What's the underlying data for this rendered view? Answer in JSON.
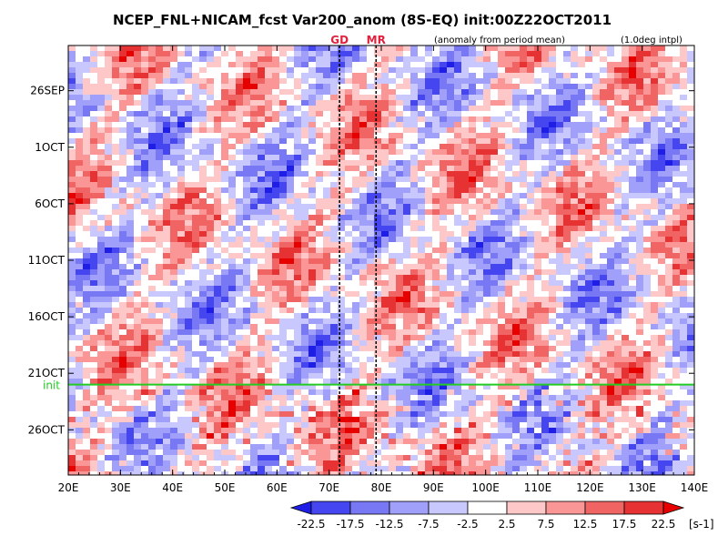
{
  "chart_data": {
    "type": "heatmap",
    "title": "NCEP_FNL+NICAM_fcst Var200_anom (8S-EQ) init:00Z22OCT2011",
    "subtitle_left": "(anomaly from period mean)",
    "subtitle_right": "(1.0deg intpl)",
    "x_axis": {
      "range": [
        20,
        140
      ],
      "ticks": [
        20,
        30,
        40,
        50,
        60,
        70,
        80,
        90,
        100,
        110,
        120,
        130,
        140
      ],
      "tick_labels": [
        "20E",
        "30E",
        "40E",
        "50E",
        "60E",
        "70E",
        "80E",
        "90E",
        "100E",
        "110E",
        "120E",
        "130E",
        "140E"
      ]
    },
    "y_axis": {
      "range": [
        "2011-09-22",
        "2011-10-30"
      ],
      "ticks": [
        "2011-09-26",
        "2011-10-01",
        "2011-10-06",
        "2011-10-11",
        "2011-10-16",
        "2011-10-21",
        "2011-10-26"
      ],
      "tick_labels": [
        "26SEP",
        "1OCT",
        "6OCT",
        "11OCT",
        "16OCT",
        "21OCT",
        "26OCT"
      ],
      "direction": "time increases downward"
    },
    "marker_lines": [
      {
        "label": "GD",
        "x": 72
      },
      {
        "label": "MR",
        "x": 79
      }
    ],
    "init_line": {
      "label": "init",
      "date": "2011-10-22",
      "color": "#22cc22"
    },
    "colorbar": {
      "levels": [
        "-22.5",
        "-17.5",
        "-12.5",
        "-7.5",
        "-2.5",
        "2.5",
        "7.5",
        "12.5",
        "17.5",
        "22.5"
      ],
      "unit": "[s-1]",
      "colors": [
        "#1e1ee6",
        "#4646f0",
        "#7878f5",
        "#a0a0fa",
        "#c8c8ff",
        "#ffffff",
        "#ffc8c8",
        "#fa9696",
        "#f06464",
        "#e63232",
        "#e60000"
      ]
    }
  }
}
